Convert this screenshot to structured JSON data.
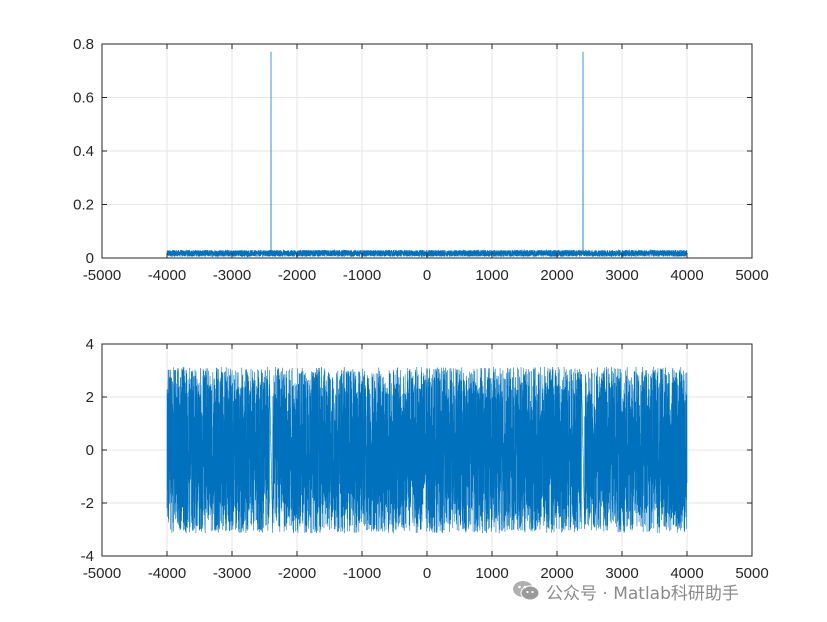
{
  "chart_data": [
    {
      "type": "line",
      "title": "",
      "xlabel": "",
      "ylabel": "",
      "xlim": [
        -5000,
        5000
      ],
      "ylim": [
        0,
        0.8
      ],
      "xticks": [
        "-5000",
        "-4000",
        "-3000",
        "-2000",
        "-1000",
        "0",
        "1000",
        "2000",
        "3000",
        "4000",
        "5000"
      ],
      "yticks": [
        "0",
        "0.2",
        "0.4",
        "0.6",
        "0.8"
      ],
      "grid": true,
      "color": "#0072BD",
      "x_range": [
        -4000,
        4000
      ],
      "noise_level": [
        0.005,
        0.03
      ],
      "peaks": [
        {
          "x": -2400,
          "y": 0.77
        },
        {
          "x": 2400,
          "y": 0.77
        }
      ]
    },
    {
      "type": "line",
      "title": "",
      "xlabel": "",
      "ylabel": "",
      "xlim": [
        -5000,
        5000
      ],
      "ylim": [
        -4,
        4
      ],
      "xticks": [
        "-5000",
        "-4000",
        "-3000",
        "-2000",
        "-1000",
        "0",
        "1000",
        "2000",
        "3000",
        "4000",
        "5000"
      ],
      "yticks": [
        "-4",
        "-2",
        "0",
        "2",
        "4"
      ],
      "grid": true,
      "color": "#0072BD",
      "x_range": [
        -4000,
        4000
      ],
      "value_range": [
        -3.14,
        3.14
      ],
      "smooth_segments": [
        {
          "x": -2400,
          "y_start": 3.0,
          "y_end": -3.0
        },
        {
          "x": 2400,
          "y_start": 3.0,
          "y_end": -3.0
        }
      ]
    }
  ],
  "watermark": {
    "icon": "wechat-icon",
    "text": "公众号 · Matlab科研助手"
  }
}
